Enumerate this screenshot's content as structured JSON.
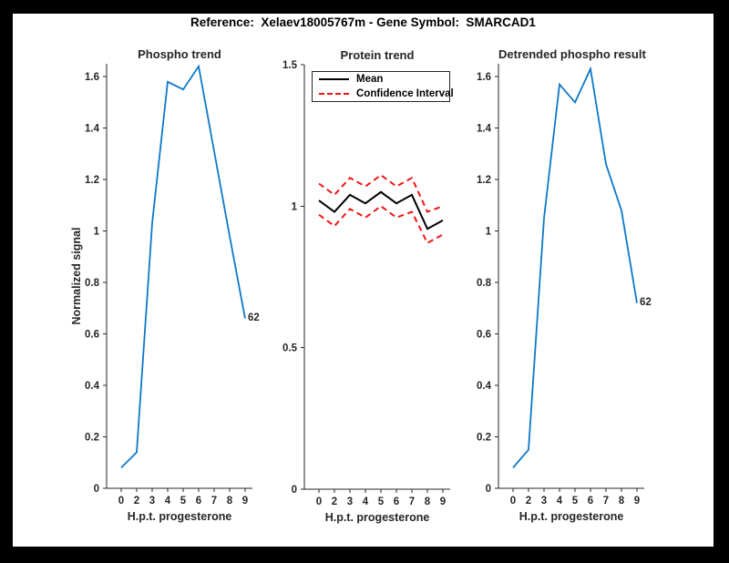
{
  "figure_title": "Reference:  Xelaev18005767m - Gene Symbol:  SMARCAD1",
  "colors": {
    "background": "#000000",
    "figure": "#ffffff",
    "axis": "#262626",
    "blue": "#0d78c8",
    "red": "#f51414",
    "black": "#000000"
  },
  "chart_data": [
    {
      "type": "line",
      "title": "Phospho trend",
      "xlabel": "H.p.t. progesterone",
      "ylabel": "Normalized signal",
      "x_tick_labels": [
        "0",
        "2",
        "3",
        "4",
        "5",
        "6",
        "7",
        "8",
        "9"
      ],
      "xlim_note": "9 evenly spaced time points",
      "ylim": [
        0,
        1.65
      ],
      "yticks": [
        0,
        0.2,
        0.4,
        0.6,
        0.8,
        1,
        1.2,
        1.4,
        1.6
      ],
      "grid": false,
      "legend": null,
      "series": [
        {
          "name": "phospho-signal",
          "color_key": "blue",
          "style": "solid",
          "width": 1.8,
          "x": [
            0,
            2,
            3,
            4,
            5,
            6,
            7,
            8,
            9
          ],
          "values": [
            0.08,
            0.14,
            1.03,
            1.58,
            1.55,
            1.64,
            1.31,
            0.98,
            0.66
          ]
        }
      ],
      "end_label": "62"
    },
    {
      "type": "line",
      "title": "Protein trend",
      "xlabel": "H.p.t. progesterone",
      "ylabel": "",
      "x_tick_labels": [
        "0",
        "2",
        "3",
        "4",
        "5",
        "6",
        "7",
        "8",
        "9"
      ],
      "ylim": [
        0,
        1.5
      ],
      "yticks": [
        0,
        0.5,
        1,
        1.5
      ],
      "grid": false,
      "legend": {
        "position": "top-inside",
        "entries": [
          {
            "label": "Mean",
            "color_key": "black",
            "style": "solid"
          },
          {
            "label": "Confidence Interval",
            "color_key": "red",
            "style": "dashed"
          }
        ]
      },
      "series": [
        {
          "name": "mean",
          "color_key": "black",
          "style": "solid",
          "width": 2,
          "x": [
            0,
            2,
            3,
            4,
            5,
            6,
            7,
            8,
            9
          ],
          "values": [
            1.02,
            0.98,
            1.04,
            1.01,
            1.05,
            1.01,
            1.04,
            0.92,
            0.95
          ]
        },
        {
          "name": "confidence-upper",
          "color_key": "red",
          "style": "dashed",
          "width": 2,
          "x": [
            0,
            2,
            3,
            4,
            5,
            6,
            7,
            8,
            9
          ],
          "values": [
            1.08,
            1.04,
            1.1,
            1.07,
            1.11,
            1.07,
            1.1,
            0.98,
            1.0
          ]
        },
        {
          "name": "confidence-lower",
          "color_key": "red",
          "style": "dashed",
          "width": 2,
          "x": [
            0,
            2,
            3,
            4,
            5,
            6,
            7,
            8,
            9
          ],
          "values": [
            0.97,
            0.93,
            0.99,
            0.96,
            1.0,
            0.96,
            0.98,
            0.87,
            0.9
          ]
        }
      ],
      "end_label": ""
    },
    {
      "type": "line",
      "title": "Detrended phospho result",
      "xlabel": "H.p.t. progesterone",
      "ylabel": "",
      "x_tick_labels": [
        "0",
        "2",
        "3",
        "4",
        "5",
        "6",
        "7",
        "8",
        "9"
      ],
      "ylim": [
        0,
        1.65
      ],
      "yticks": [
        0,
        0.2,
        0.4,
        0.6,
        0.8,
        1,
        1.2,
        1.4,
        1.6
      ],
      "grid": false,
      "legend": null,
      "series": [
        {
          "name": "detrended-phospho-signal",
          "color_key": "blue",
          "style": "solid",
          "width": 1.8,
          "x": [
            0,
            2,
            3,
            4,
            5,
            6,
            7,
            8,
            9
          ],
          "values": [
            0.08,
            0.15,
            1.05,
            1.57,
            1.5,
            1.63,
            1.26,
            1.08,
            0.72
          ]
        }
      ],
      "end_label": "62"
    }
  ]
}
